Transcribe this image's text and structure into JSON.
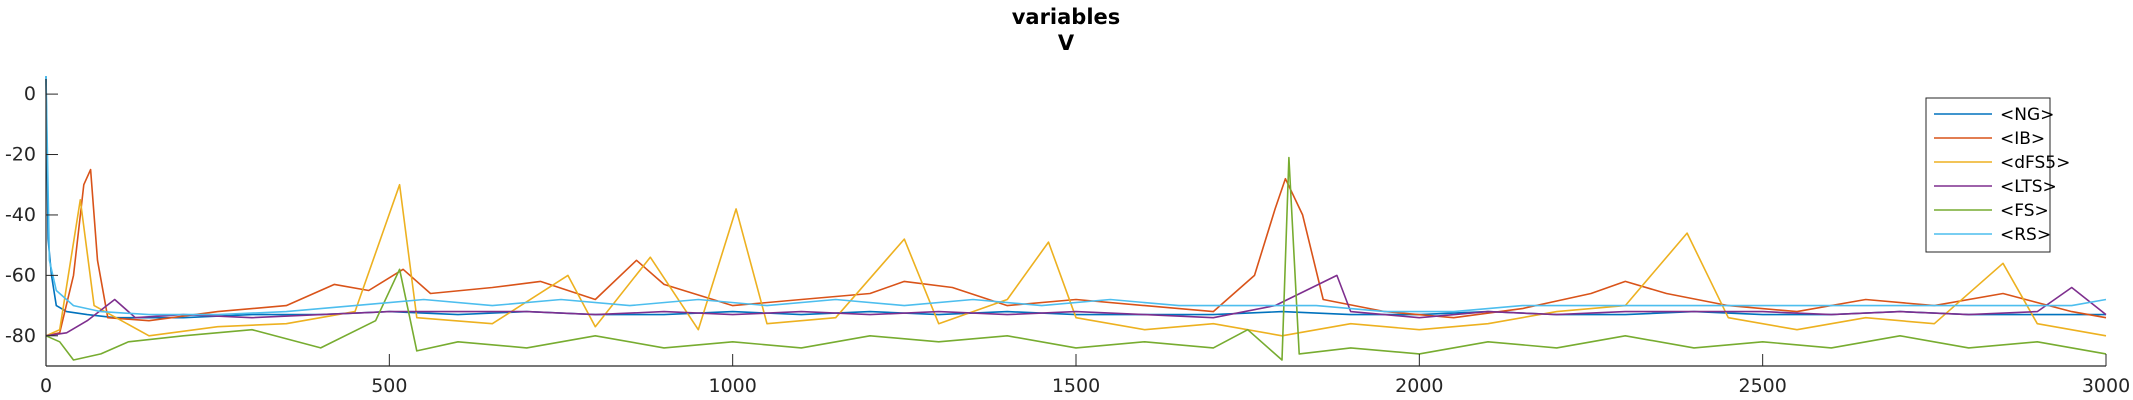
{
  "chart_data": {
    "type": "line",
    "title": "variables",
    "subtitle": "V",
    "xlabel": "",
    "ylabel": "",
    "xlim": [
      0,
      3000
    ],
    "ylim": [
      -90,
      5
    ],
    "x_ticks": [
      0,
      500,
      1000,
      1500,
      2000,
      2500,
      3000
    ],
    "y_ticks": [
      0,
      -20,
      -40,
      -60,
      -80
    ],
    "grid": false,
    "legend_position": "top-right",
    "series": [
      {
        "name": "<NG>",
        "color": "#0072BD",
        "points": [
          [
            0,
            6
          ],
          [
            3,
            -48
          ],
          [
            8,
            -60
          ],
          [
            15,
            -70
          ],
          [
            30,
            -72
          ],
          [
            60,
            -73
          ],
          [
            100,
            -74
          ],
          [
            200,
            -74
          ],
          [
            300,
            -73
          ],
          [
            400,
            -73
          ],
          [
            500,
            -72
          ],
          [
            600,
            -73
          ],
          [
            700,
            -72
          ],
          [
            800,
            -73
          ],
          [
            900,
            -73
          ],
          [
            1000,
            -72
          ],
          [
            1100,
            -73
          ],
          [
            1200,
            -72
          ],
          [
            1300,
            -73
          ],
          [
            1400,
            -72
          ],
          [
            1500,
            -73
          ],
          [
            1600,
            -73
          ],
          [
            1700,
            -73
          ],
          [
            1800,
            -72
          ],
          [
            1900,
            -73
          ],
          [
            2000,
            -73
          ],
          [
            2100,
            -72
          ],
          [
            2200,
            -73
          ],
          [
            2300,
            -73
          ],
          [
            2400,
            -72
          ],
          [
            2500,
            -73
          ],
          [
            2600,
            -73
          ],
          [
            2700,
            -72
          ],
          [
            2800,
            -73
          ],
          [
            2900,
            -73
          ],
          [
            3000,
            -73
          ]
        ]
      },
      {
        "name": "<IB>",
        "color": "#D95319",
        "points": [
          [
            0,
            -80
          ],
          [
            20,
            -79
          ],
          [
            40,
            -60
          ],
          [
            55,
            -30
          ],
          [
            65,
            -25
          ],
          [
            75,
            -55
          ],
          [
            90,
            -74
          ],
          [
            150,
            -75
          ],
          [
            250,
            -72
          ],
          [
            350,
            -70
          ],
          [
            420,
            -63
          ],
          [
            470,
            -65
          ],
          [
            520,
            -58
          ],
          [
            560,
            -66
          ],
          [
            650,
            -64
          ],
          [
            720,
            -62
          ],
          [
            800,
            -68
          ],
          [
            860,
            -55
          ],
          [
            900,
            -63
          ],
          [
            1000,
            -70
          ],
          [
            1100,
            -68
          ],
          [
            1200,
            -66
          ],
          [
            1250,
            -62
          ],
          [
            1320,
            -64
          ],
          [
            1400,
            -70
          ],
          [
            1500,
            -68
          ],
          [
            1600,
            -70
          ],
          [
            1700,
            -72
          ],
          [
            1760,
            -60
          ],
          [
            1790,
            -38
          ],
          [
            1805,
            -28
          ],
          [
            1830,
            -40
          ],
          [
            1860,
            -68
          ],
          [
            1950,
            -72
          ],
          [
            2050,
            -74
          ],
          [
            2150,
            -71
          ],
          [
            2250,
            -66
          ],
          [
            2300,
            -62
          ],
          [
            2360,
            -66
          ],
          [
            2450,
            -70
          ],
          [
            2550,
            -72
          ],
          [
            2650,
            -68
          ],
          [
            2750,
            -70
          ],
          [
            2850,
            -66
          ],
          [
            2950,
            -72
          ],
          [
            3000,
            -74
          ]
        ]
      },
      {
        "name": "<dFS5>",
        "color": "#EDB120",
        "points": [
          [
            0,
            -80
          ],
          [
            20,
            -78
          ],
          [
            50,
            -35
          ],
          [
            70,
            -70
          ],
          [
            150,
            -80
          ],
          [
            250,
            -77
          ],
          [
            350,
            -76
          ],
          [
            450,
            -72
          ],
          [
            515,
            -30
          ],
          [
            540,
            -74
          ],
          [
            650,
            -76
          ],
          [
            760,
            -60
          ],
          [
            800,
            -77
          ],
          [
            880,
            -54
          ],
          [
            950,
            -78
          ],
          [
            1005,
            -38
          ],
          [
            1050,
            -76
          ],
          [
            1150,
            -74
          ],
          [
            1250,
            -48
          ],
          [
            1300,
            -76
          ],
          [
            1400,
            -68
          ],
          [
            1460,
            -49
          ],
          [
            1500,
            -74
          ],
          [
            1600,
            -78
          ],
          [
            1700,
            -76
          ],
          [
            1800,
            -80
          ],
          [
            1900,
            -76
          ],
          [
            2000,
            -78
          ],
          [
            2100,
            -76
          ],
          [
            2200,
            -72
          ],
          [
            2300,
            -70
          ],
          [
            2390,
            -46
          ],
          [
            2450,
            -74
          ],
          [
            2550,
            -78
          ],
          [
            2650,
            -74
          ],
          [
            2750,
            -76
          ],
          [
            2850,
            -56
          ],
          [
            2900,
            -76
          ],
          [
            3000,
            -80
          ]
        ]
      },
      {
        "name": "<LTS>",
        "color": "#7E2F8E",
        "points": [
          [
            0,
            -80
          ],
          [
            30,
            -79
          ],
          [
            60,
            -75
          ],
          [
            100,
            -68
          ],
          [
            130,
            -74
          ],
          [
            200,
            -73
          ],
          [
            300,
            -74
          ],
          [
            400,
            -73
          ],
          [
            500,
            -72
          ],
          [
            600,
            -72
          ],
          [
            700,
            -72
          ],
          [
            800,
            -73
          ],
          [
            900,
            -72
          ],
          [
            1000,
            -73
          ],
          [
            1100,
            -72
          ],
          [
            1200,
            -73
          ],
          [
            1300,
            -72
          ],
          [
            1400,
            -73
          ],
          [
            1500,
            -72
          ],
          [
            1600,
            -73
          ],
          [
            1700,
            -74
          ],
          [
            1790,
            -70
          ],
          [
            1880,
            -60
          ],
          [
            1900,
            -72
          ],
          [
            2000,
            -74
          ],
          [
            2100,
            -72
          ],
          [
            2200,
            -73
          ],
          [
            2300,
            -72
          ],
          [
            2400,
            -72
          ],
          [
            2500,
            -72
          ],
          [
            2600,
            -73
          ],
          [
            2700,
            -72
          ],
          [
            2800,
            -73
          ],
          [
            2900,
            -72
          ],
          [
            2950,
            -64
          ],
          [
            3000,
            -73
          ]
        ]
      },
      {
        "name": "<FS>",
        "color": "#77AC30",
        "points": [
          [
            0,
            -80
          ],
          [
            20,
            -82
          ],
          [
            40,
            -88
          ],
          [
            80,
            -86
          ],
          [
            120,
            -82
          ],
          [
            200,
            -80
          ],
          [
            300,
            -78
          ],
          [
            400,
            -84
          ],
          [
            480,
            -75
          ],
          [
            515,
            -58
          ],
          [
            540,
            -85
          ],
          [
            600,
            -82
          ],
          [
            700,
            -84
          ],
          [
            800,
            -80
          ],
          [
            900,
            -84
          ],
          [
            1000,
            -82
          ],
          [
            1100,
            -84
          ],
          [
            1200,
            -80
          ],
          [
            1300,
            -82
          ],
          [
            1400,
            -80
          ],
          [
            1500,
            -84
          ],
          [
            1600,
            -82
          ],
          [
            1700,
            -84
          ],
          [
            1750,
            -78
          ],
          [
            1800,
            -88
          ],
          [
            1810,
            -21
          ],
          [
            1825,
            -86
          ],
          [
            1900,
            -84
          ],
          [
            2000,
            -86
          ],
          [
            2100,
            -82
          ],
          [
            2200,
            -84
          ],
          [
            2300,
            -80
          ],
          [
            2400,
            -84
          ],
          [
            2500,
            -82
          ],
          [
            2600,
            -84
          ],
          [
            2700,
            -80
          ],
          [
            2800,
            -84
          ],
          [
            2900,
            -82
          ],
          [
            3000,
            -86
          ]
        ]
      },
      {
        "name": "<RS>",
        "color": "#4DBEEE",
        "points": [
          [
            0,
            6
          ],
          [
            5,
            -55
          ],
          [
            15,
            -65
          ],
          [
            40,
            -70
          ],
          [
            80,
            -72
          ],
          [
            150,
            -73
          ],
          [
            250,
            -73
          ],
          [
            350,
            -72
          ],
          [
            450,
            -70
          ],
          [
            550,
            -68
          ],
          [
            650,
            -70
          ],
          [
            750,
            -68
          ],
          [
            850,
            -70
          ],
          [
            950,
            -68
          ],
          [
            1050,
            -70
          ],
          [
            1150,
            -68
          ],
          [
            1250,
            -70
          ],
          [
            1350,
            -68
          ],
          [
            1450,
            -70
          ],
          [
            1550,
            -68
          ],
          [
            1650,
            -70
          ],
          [
            1750,
            -70
          ],
          [
            1850,
            -70
          ],
          [
            1950,
            -72
          ],
          [
            2050,
            -72
          ],
          [
            2150,
            -70
          ],
          [
            2250,
            -70
          ],
          [
            2350,
            -70
          ],
          [
            2450,
            -70
          ],
          [
            2550,
            -70
          ],
          [
            2650,
            -70
          ],
          [
            2750,
            -70
          ],
          [
            2850,
            -70
          ],
          [
            2950,
            -70
          ],
          [
            3000,
            -68
          ]
        ]
      }
    ]
  }
}
